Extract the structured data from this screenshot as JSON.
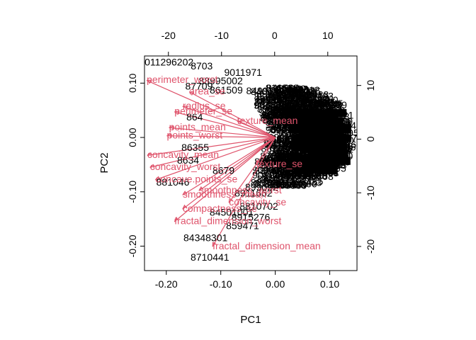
{
  "chart_data": {
    "type": "scatter",
    "subtype": "biplot",
    "xlabel": "PC1",
    "ylabel": "PC2",
    "xlim": [
      -0.24,
      0.15
    ],
    "ylim": [
      -0.245,
      0.15
    ],
    "xticks": [
      -0.2,
      -0.1,
      0.0,
      0.1
    ],
    "xtick_labels": [
      "-0.20",
      "-0.10",
      "0.00",
      "0.10"
    ],
    "yticks": [
      -0.2,
      -0.1,
      0.0,
      0.1
    ],
    "ytick_labels": [
      "-0.20",
      "-0.10",
      "0.00",
      "0.10"
    ],
    "top_axis": {
      "xlim": [
        -24.5,
        15.5
      ],
      "ticks": [
        -20,
        -10,
        0,
        10
      ],
      "labels": [
        "-20",
        "-10",
        "0",
        "10"
      ]
    },
    "right_axis": {
      "ylim": [
        -24.5,
        15.5
      ],
      "ticks": [
        -20,
        -10,
        0,
        10
      ],
      "labels": [
        "-20",
        "-10",
        "0",
        "10"
      ]
    },
    "observations": [
      {
        "label": "9011296202",
        "x": -0.2,
        "y": 0.137
      },
      {
        "label": "8703",
        "x": -0.135,
        "y": 0.13
      },
      {
        "label": "9011971",
        "x": -0.059,
        "y": 0.118
      },
      {
        "label": "88995002",
        "x": -0.1,
        "y": 0.103
      },
      {
        "label": "87709",
        "x": -0.14,
        "y": 0.093
      },
      {
        "label": "861509",
        "x": -0.09,
        "y": 0.086
      },
      {
        "label": "8376702",
        "x": 0.02,
        "y": 0.076
      },
      {
        "label": "86057",
        "x": 0.075,
        "y": 0.061
      },
      {
        "label": "864",
        "x": -0.148,
        "y": 0.036
      },
      {
        "label": "86355",
        "x": -0.147,
        "y": -0.02
      },
      {
        "label": "8634",
        "x": -0.16,
        "y": -0.043
      },
      {
        "label": "8679",
        "x": -0.095,
        "y": -0.062
      },
      {
        "label": "881046",
        "x": -0.188,
        "y": -0.084
      },
      {
        "label": "8990447",
        "x": 0.01,
        "y": -0.074
      },
      {
        "label": "893722",
        "x": 0.05,
        "y": -0.066
      },
      {
        "label": "899092",
        "x": -0.025,
        "y": -0.093
      },
      {
        "label": "8911662",
        "x": -0.04,
        "y": -0.104
      },
      {
        "label": "8810702",
        "x": -0.03,
        "y": -0.128
      },
      {
        "label": "84501001",
        "x": -0.08,
        "y": -0.139
      },
      {
        "label": "8915276",
        "x": -0.045,
        "y": -0.148
      },
      {
        "label": "859471",
        "x": -0.06,
        "y": -0.164
      },
      {
        "label": "84348301",
        "x": -0.128,
        "y": -0.186
      },
      {
        "label": "8710441",
        "x": -0.12,
        "y": -0.222
      }
    ],
    "loadings": [
      {
        "label": "perimeter_worst",
        "x": -0.236,
        "y": 0.105
      },
      {
        "label": "area_se",
        "x": -0.158,
        "y": 0.084
      },
      {
        "label": "radius_se",
        "x": -0.17,
        "y": 0.057
      },
      {
        "label": "perimeter_se",
        "x": -0.185,
        "y": 0.047
      },
      {
        "label": "texture_mean",
        "x": -0.07,
        "y": 0.03
      },
      {
        "label": "points_mean",
        "x": -0.195,
        "y": 0.018
      },
      {
        "label": "points_worst",
        "x": -0.199,
        "y": 0.003
      },
      {
        "label": "concavity_mean",
        "x": -0.235,
        "y": -0.033
      },
      {
        "label": "concavity_worst",
        "x": -0.23,
        "y": -0.055
      },
      {
        "label": "texture_se",
        "x": -0.035,
        "y": -0.05
      },
      {
        "label": "concave.points_se",
        "x": -0.22,
        "y": -0.078
      },
      {
        "label": "smoothness_worst",
        "x": -0.14,
        "y": -0.098
      },
      {
        "label": "smoothness_mean",
        "x": -0.17,
        "y": -0.106
      },
      {
        "label": "concavity_se",
        "x": -0.085,
        "y": -0.12
      },
      {
        "label": "compactness_se",
        "x": -0.17,
        "y": -0.132
      },
      {
        "label": "fractal_dimension_worst",
        "x": -0.185,
        "y": -0.155
      },
      {
        "label": "fractal_dimension_mean",
        "x": -0.115,
        "y": -0.201
      }
    ],
    "colors": {
      "observations": "#000000",
      "loadings": "#DF536B",
      "axes": "#000000"
    }
  }
}
